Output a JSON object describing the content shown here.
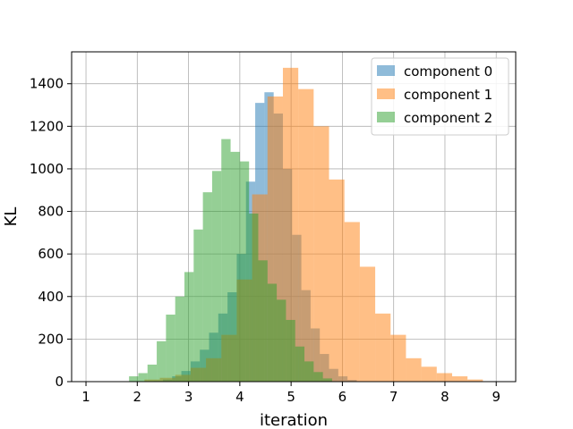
{
  "chart_data": {
    "type": "bar",
    "subtype": "overlaid-histogram",
    "xlabel": "iteration",
    "ylabel": "KL",
    "xlim": [
      0.72,
      9.38
    ],
    "ylim": [
      0,
      1550
    ],
    "xticks": [
      1,
      2,
      3,
      4,
      5,
      6,
      7,
      8,
      9
    ],
    "yticks": [
      0,
      200,
      400,
      600,
      800,
      1000,
      1200,
      1400
    ],
    "grid": true,
    "legend_position": "top-right",
    "series": [
      {
        "name": "component 0",
        "color": "#1f77b4",
        "opacity": 0.5,
        "bin_edges": [
          2.32,
          2.5,
          2.68,
          2.86,
          3.04,
          3.22,
          3.4,
          3.58,
          3.76,
          3.94,
          4.12,
          4.3,
          4.48,
          4.66,
          4.84,
          5.02,
          5.2,
          5.38,
          5.56,
          5.74,
          5.92,
          6.1,
          6.28
        ],
        "counts": [
          3,
          10,
          25,
          50,
          95,
          150,
          230,
          320,
          420,
          600,
          940,
          1310,
          1360,
          1260,
          1000,
          690,
          430,
          250,
          130,
          60,
          25,
          8
        ]
      },
      {
        "name": "component 1",
        "color": "#ff7f0e",
        "opacity": 0.5,
        "bin_edges": [
          2.14,
          2.44,
          2.74,
          3.04,
          3.34,
          3.64,
          3.94,
          4.24,
          4.54,
          4.84,
          5.14,
          5.44,
          5.74,
          6.04,
          6.34,
          6.64,
          6.94,
          7.24,
          7.54,
          7.84,
          8.14,
          8.44,
          8.74
        ],
        "counts": [
          10,
          18,
          32,
          65,
          110,
          220,
          480,
          880,
          1340,
          1475,
          1375,
          1200,
          950,
          750,
          540,
          320,
          220,
          110,
          70,
          40,
          25,
          10
        ]
      },
      {
        "name": "component 2",
        "color": "#2ca02c",
        "opacity": 0.5,
        "bin_edges": [
          1.84,
          2.02,
          2.2,
          2.38,
          2.56,
          2.74,
          2.92,
          3.1,
          3.28,
          3.46,
          3.64,
          3.82,
          4.0,
          4.18,
          4.36,
          4.54,
          4.72,
          4.9,
          5.08,
          5.26,
          5.44,
          5.62,
          5.8
        ],
        "counts": [
          25,
          40,
          80,
          190,
          315,
          400,
          515,
          715,
          890,
          990,
          1140,
          1080,
          1035,
          790,
          570,
          460,
          385,
          290,
          165,
          95,
          45,
          15
        ]
      }
    ]
  }
}
